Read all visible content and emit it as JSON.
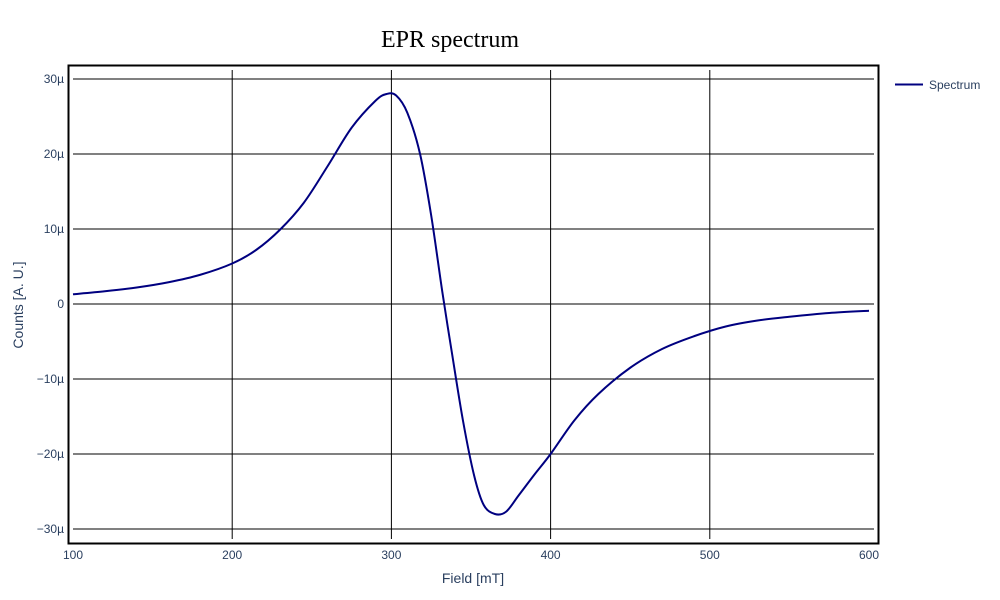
{
  "chart_data": {
    "type": "line",
    "title": "EPR spectrum",
    "xlabel": "Field [mT]",
    "ylabel": "Counts [A. U.]",
    "xlim": [
      100,
      600
    ],
    "ylim": [
      -32,
      31
    ],
    "xticks": [
      100,
      200,
      300,
      400,
      500,
      600
    ],
    "xtick_labels": [
      "100",
      "200",
      "300",
      "400",
      "500",
      "600"
    ],
    "yticks": [
      -30,
      -20,
      -10,
      0,
      10,
      20,
      30
    ],
    "ytick_labels": [
      "−30µ",
      "−20µ",
      "−10µ",
      "0",
      "10µ",
      "20µ",
      "30µ"
    ],
    "grid": true,
    "legend_position": "top-right",
    "series": [
      {
        "name": "Spectrum",
        "color": "#000080",
        "x": [
          100,
          120,
          140,
          160,
          180,
          200,
          215,
          230,
          245,
          260,
          275,
          290,
          297,
          303,
          310,
          318,
          325,
          332,
          338,
          345,
          352,
          358,
          365,
          372,
          380,
          390,
          400,
          415,
          430,
          450,
          470,
          490,
          510,
          530,
          550,
          575,
          600
        ],
        "y": [
          1.3,
          1.7,
          2.2,
          2.9,
          3.9,
          5.4,
          7.2,
          9.9,
          13.5,
          18.4,
          23.5,
          27.1,
          28.0,
          27.8,
          25.5,
          20.0,
          11.8,
          1.6,
          -6.5,
          -15.6,
          -22.9,
          -26.8,
          -28.0,
          -27.7,
          -25.5,
          -22.7,
          -20.0,
          -15.5,
          -12.0,
          -8.5,
          -6.0,
          -4.3,
          -3.0,
          -2.2,
          -1.7,
          -1.2,
          -0.9
        ]
      }
    ]
  }
}
